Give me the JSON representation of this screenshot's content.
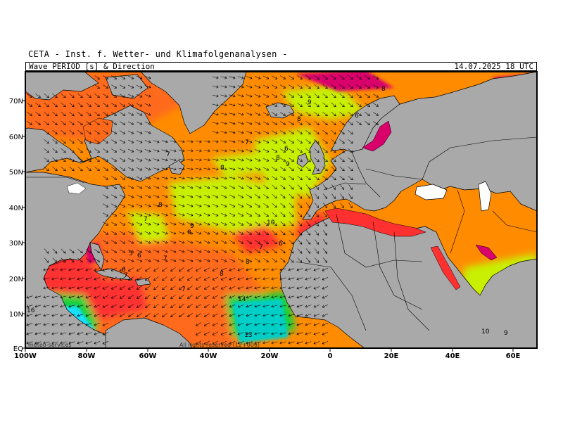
{
  "header": {
    "title": "CETA - Inst. f. Wetter- und Klimafolgenanalysen -",
    "subtitle": "Wave PERIOD [s] & Direction",
    "timestamp": "14.07.2025 18 UTC"
  },
  "axes": {
    "lat_labels": [
      "70N",
      "60N",
      "50N",
      "40N",
      "30N",
      "20N",
      "10N",
      "EQ"
    ],
    "lon_labels": [
      "100W",
      "80W",
      "60W",
      "40W",
      "20W",
      "0",
      "20E",
      "40E",
      "60E"
    ]
  },
  "period_labels": [
    "8",
    "9",
    "8",
    "6",
    "7",
    "8",
    "6",
    "9",
    "8",
    "7",
    "9",
    "8",
    "8",
    "7",
    "10",
    "7",
    "6",
    "5",
    "6",
    "7",
    "8",
    "8",
    "7",
    "7",
    "8",
    "14",
    "16",
    "13",
    "10",
    "9"
  ],
  "footer": {
    "left": "meteo-services",
    "right": "All rights reserved (12+006)"
  },
  "colors": {
    "land": "#a9a9a9",
    "border": "#000000",
    "wave_5s": "#d9006c",
    "wave_6s": "#ff3030",
    "wave_7s": "#ff6a1a",
    "wave_8s": "#ff8c00",
    "wave_9s": "#c8ef00",
    "wave_10s": "#7ddc00",
    "wave_12s": "#19d23c",
    "wave_14s": "#00cfc8",
    "wave_16s": "#14e0ff"
  }
}
